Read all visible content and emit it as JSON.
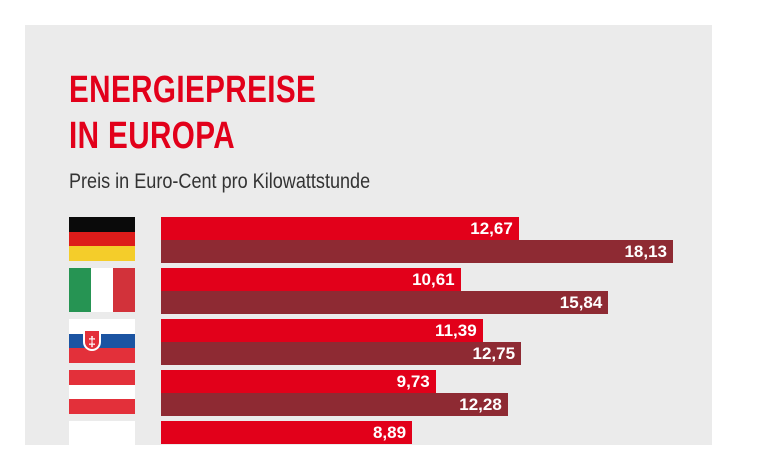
{
  "title_line1": "ENERGIEPREISE",
  "title_line2": "IN EUROPA",
  "subtitle": "Preis in Euro-Cent pro Kilowattstunde",
  "colors": {
    "title": "#e2001a",
    "series_a": "#e2001a",
    "series_b": "#8e2a33",
    "background": "#ebebeb"
  },
  "chart_data": {
    "type": "bar",
    "orientation": "horizontal",
    "categories": [
      "germany-flag",
      "italy-flag",
      "slovakia-flag",
      "austria-flag",
      "partial-flag"
    ],
    "series": [
      {
        "values": [
          12.67,
          10.61,
          11.39,
          9.73,
          8.89
        ],
        "labels": [
          "12,67",
          "10,61",
          "11,39",
          "9,73",
          "8,89"
        ]
      },
      {
        "values": [
          18.13,
          15.84,
          12.75,
          12.28,
          null
        ],
        "labels": [
          "18,13",
          "15,84",
          "12,75",
          "12,28",
          null
        ]
      }
    ],
    "title": "ENERGIEPREISE IN EUROPA",
    "subtitle": "Preis in Euro-Cent pro Kilowattstunde",
    "xlim": [
      0,
      18.13
    ],
    "grid": false
  }
}
